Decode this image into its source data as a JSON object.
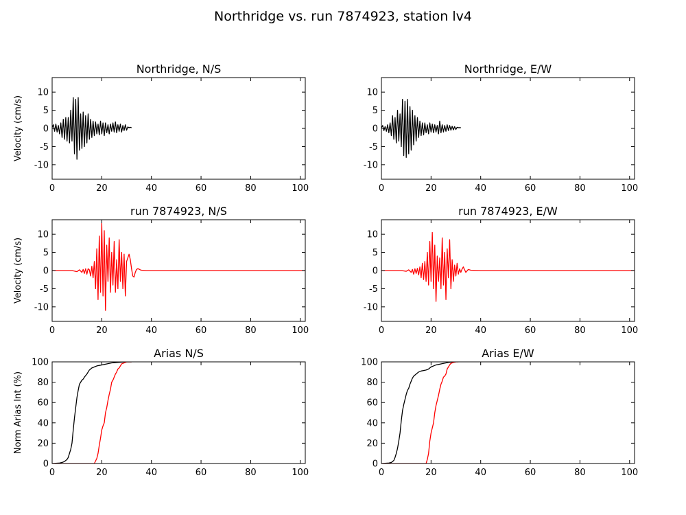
{
  "figure": {
    "suptitle": "Northridge vs. run 7874923, station lv4"
  },
  "colors": {
    "recorded": "#000000",
    "simulated": "#ff0000",
    "axes": "#000000",
    "background": "#ffffff"
  },
  "chart_data": [
    {
      "id": "p1",
      "type": "line",
      "title": "Northridge, N/S",
      "xlabel": "",
      "ylabel": "Velocity (cm/s)",
      "xlim": [
        0,
        102
      ],
      "ylim": [
        -14,
        14
      ],
      "xticks": [
        0,
        20,
        40,
        60,
        80,
        100
      ],
      "yticks": [
        10,
        5,
        0,
        -5,
        -10
      ],
      "grid": false,
      "series": [
        {
          "color": "#000000",
          "x": [
            0,
            0.5,
            1,
            1.5,
            2,
            2.5,
            3,
            3.5,
            4,
            4.5,
            5,
            5.5,
            6,
            6.5,
            7,
            7.5,
            8,
            8.5,
            9,
            9.5,
            10,
            10.5,
            11,
            11.5,
            12,
            12.5,
            13,
            13.5,
            14,
            14.5,
            15,
            15.5,
            16,
            16.5,
            17,
            17.5,
            18,
            18.5,
            19,
            19.5,
            20,
            20.5,
            21,
            21.5,
            22,
            22.5,
            23,
            23.5,
            24,
            24.5,
            25,
            25.5,
            26,
            26.5,
            27,
            27.5,
            28,
            28.5,
            29,
            29.5,
            30,
            30.5,
            31,
            31.5,
            32
          ],
          "y": [
            0.3,
            1,
            -0.8,
            1.2,
            -1,
            0.8,
            -1.5,
            1.5,
            -2.5,
            2.5,
            -3,
            3,
            -3.5,
            3,
            -4,
            5,
            -3.5,
            8.5,
            -7,
            8,
            -8.5,
            8.5,
            -6,
            4,
            -5.5,
            4.5,
            -5,
            3.5,
            -4,
            4,
            -3,
            2.5,
            -2.5,
            2,
            -2,
            1.8,
            -1.5,
            1.2,
            -1.8,
            2,
            -1.5,
            1.5,
            -2,
            1.5,
            -1.2,
            1,
            -1.5,
            1.2,
            -0.8,
            1.5,
            -1,
            1.8,
            -1.2,
            1,
            -0.8,
            1.2,
            -1,
            0.8,
            -0.6,
            1,
            -0.5,
            0.4,
            0.2,
            0.3,
            0.2
          ]
        }
      ]
    },
    {
      "id": "p2",
      "type": "line",
      "title": "Northridge, E/W",
      "xlabel": "",
      "ylabel": "",
      "xlim": [
        0,
        102
      ],
      "ylim": [
        -14,
        14
      ],
      "xticks": [
        0,
        20,
        40,
        60,
        80,
        100
      ],
      "yticks": [
        10,
        5,
        0,
        -5,
        -10
      ],
      "grid": false,
      "series": [
        {
          "color": "#000000",
          "x": [
            0,
            0.5,
            1,
            1.5,
            2,
            2.5,
            3,
            3.5,
            4,
            4.5,
            5,
            5.5,
            6,
            6.5,
            7,
            7.5,
            8,
            8.5,
            9,
            9.5,
            10,
            10.5,
            11,
            11.5,
            12,
            12.5,
            13,
            13.5,
            14,
            14.5,
            15,
            15.5,
            16,
            16.5,
            17,
            17.5,
            18,
            18.5,
            19,
            19.5,
            20,
            20.5,
            21,
            21.5,
            22,
            22.5,
            23,
            23.5,
            24,
            24.5,
            25,
            25.5,
            26,
            26.5,
            27,
            27.5,
            28,
            28.5,
            29,
            29.5,
            30,
            30.5,
            31,
            31.5,
            32
          ],
          "y": [
            0.2,
            0.8,
            -0.6,
            0.5,
            -0.8,
            1,
            -1.2,
            1.5,
            -2,
            3.5,
            -3,
            3,
            -4,
            5,
            -3.5,
            4,
            -5,
            8,
            -7.5,
            7.5,
            -8,
            8,
            -7,
            6,
            -6,
            5,
            -4.5,
            3.5,
            -3.5,
            3,
            -2.5,
            2,
            -2,
            1.5,
            -1.8,
            1.5,
            -1.2,
            1,
            -1.5,
            1.5,
            -1,
            1.2,
            -1.2,
            1,
            -1,
            0.8,
            -1.5,
            2,
            -1.2,
            1,
            -1,
            0.8,
            -0.8,
            1,
            -0.6,
            0.8,
            -0.5,
            0.6,
            -0.4,
            0.5,
            -0.3,
            0.3,
            0.2,
            0.2,
            0.2
          ]
        }
      ]
    },
    {
      "id": "p3",
      "type": "line",
      "title": "run 7874923, N/S",
      "xlabel": "",
      "ylabel": "Velocity (cm/s)",
      "xlim": [
        0,
        102
      ],
      "ylim": [
        -14,
        14
      ],
      "xticks": [
        0,
        20,
        40,
        60,
        80,
        100
      ],
      "yticks": [
        10,
        5,
        0,
        -5,
        -10
      ],
      "grid": false,
      "series": [
        {
          "color": "#ff0000",
          "x": [
            0,
            8,
            10,
            11,
            12,
            12.5,
            13,
            13.5,
            14,
            14.5,
            15,
            15.5,
            16,
            16.5,
            17,
            17.5,
            18,
            18.5,
            19,
            19.5,
            20,
            20.5,
            21,
            21.5,
            22,
            22.5,
            23,
            23.5,
            24,
            24.5,
            25,
            25.5,
            26,
            26.5,
            27,
            27.5,
            28,
            28.5,
            29,
            29.5,
            30,
            30.5,
            31,
            31.5,
            32,
            32.5,
            33,
            33.5,
            34,
            34.5,
            35,
            35.5,
            36,
            37,
            38,
            40,
            102
          ],
          "y": [
            0,
            0,
            -0.3,
            0.2,
            -0.5,
            0.3,
            -0.8,
            0.5,
            -1,
            0.5,
            0.2,
            -1.5,
            1.2,
            -2,
            2.5,
            -5,
            6,
            -8,
            9.5,
            -6,
            13,
            -7,
            11,
            -11,
            7,
            -3,
            9,
            -6,
            5,
            -4,
            8,
            -6,
            3,
            -5,
            8.5,
            -3,
            5,
            -5,
            4.5,
            -7,
            2.5,
            3.5,
            4.5,
            3,
            0.5,
            -1.5,
            -1.8,
            -0.5,
            0.3,
            0.5,
            0.4,
            0.2,
            0.1,
            0.05,
            0,
            0,
            0
          ]
        }
      ]
    },
    {
      "id": "p4",
      "type": "line",
      "title": "run 7874923, E/W",
      "xlabel": "",
      "ylabel": "",
      "xlim": [
        0,
        102
      ],
      "ylim": [
        -14,
        14
      ],
      "xticks": [
        0,
        20,
        40,
        60,
        80,
        100
      ],
      "yticks": [
        10,
        5,
        0,
        -5,
        -10
      ],
      "grid": false,
      "series": [
        {
          "color": "#ff0000",
          "x": [
            0,
            8,
            10,
            11,
            12,
            12.5,
            13,
            13.5,
            14,
            14.5,
            15,
            15.5,
            16,
            16.5,
            17,
            17.5,
            18,
            18.5,
            19,
            19.5,
            20,
            20.5,
            21,
            21.5,
            22,
            22.5,
            23,
            23.5,
            24,
            24.5,
            25,
            25.5,
            26,
            26.5,
            27,
            27.5,
            28,
            28.5,
            29,
            29.5,
            30,
            30.5,
            31,
            31.5,
            32,
            32.5,
            33,
            34,
            35,
            36,
            38,
            40,
            102
          ],
          "y": [
            0,
            0,
            -0.2,
            0.2,
            -0.5,
            0.3,
            -1,
            0.5,
            -0.8,
            0.6,
            -1.2,
            1,
            -2,
            2,
            -2.5,
            2.5,
            -3,
            5,
            -4,
            8,
            -3,
            10.5,
            -5,
            7,
            -8.5,
            4,
            -3,
            3.5,
            -5,
            9,
            -4,
            5,
            -8,
            6,
            -2,
            8.5,
            -5,
            3,
            -3,
            1.5,
            -1.5,
            2,
            -1,
            0.5,
            -0.5,
            0.4,
            1,
            -0.5,
            0.3,
            0.1,
            0.05,
            0,
            0
          ]
        }
      ]
    },
    {
      "id": "p5",
      "type": "line",
      "title": "Arias N/S",
      "xlabel": "",
      "ylabel": "Norm Arias Int (%)",
      "xlim": [
        0,
        102
      ],
      "ylim": [
        0,
        100
      ],
      "xticks": [
        0,
        20,
        40,
        60,
        80,
        100
      ],
      "yticks": [
        100,
        80,
        60,
        40,
        20,
        0
      ],
      "grid": false,
      "series": [
        {
          "color": "#000000",
          "x": [
            0,
            3,
            4,
            5,
            6,
            6.5,
            7,
            7.5,
            8,
            8.5,
            9,
            9.5,
            10,
            10.5,
            11,
            11.5,
            12,
            12.5,
            13,
            14,
            15,
            16,
            17,
            18,
            19,
            20,
            21,
            22,
            23,
            24,
            25,
            26,
            27,
            28,
            29,
            30,
            31,
            32
          ],
          "y": [
            0,
            0.5,
            1,
            2,
            4,
            6,
            10,
            14,
            20,
            33,
            45,
            55,
            65,
            72,
            78,
            80,
            82,
            83,
            85,
            88,
            92,
            94,
            95,
            96,
            96.5,
            97,
            97.5,
            98,
            98.5,
            99,
            99.2,
            99.4,
            99.6,
            99.8,
            99.9,
            100,
            100,
            100
          ]
        },
        {
          "color": "#ff0000",
          "x": [
            0,
            17,
            18,
            18.5,
            19,
            19.5,
            20,
            20.5,
            21,
            21.5,
            22,
            22.5,
            23,
            23.5,
            24,
            24.5,
            25,
            25.5,
            26,
            26.5,
            27,
            27.5,
            28,
            29,
            30,
            31,
            32
          ],
          "y": [
            0,
            0,
            5,
            10,
            18,
            25,
            33,
            37,
            40,
            50,
            55,
            62,
            68,
            73,
            80,
            82,
            85,
            88,
            90,
            93,
            94,
            96,
            98,
            99,
            100,
            100,
            100
          ]
        }
      ]
    },
    {
      "id": "p6",
      "type": "line",
      "title": "Arias E/W",
      "xlabel": "",
      "ylabel": "",
      "xlim": [
        0,
        102
      ],
      "ylim": [
        0,
        100
      ],
      "xticks": [
        0,
        20,
        40,
        60,
        80,
        100
      ],
      "yticks": [
        100,
        80,
        60,
        40,
        20,
        0
      ],
      "grid": false,
      "series": [
        {
          "color": "#000000",
          "x": [
            0,
            3,
            4,
            5,
            5.5,
            6,
            6.5,
            7,
            7.5,
            8,
            8.5,
            9,
            9.5,
            10,
            10.5,
            11,
            11.5,
            12,
            12.5,
            13,
            14,
            15,
            16,
            17,
            18,
            19,
            20,
            21,
            22,
            23,
            24,
            25,
            26,
            27,
            28,
            29,
            30
          ],
          "y": [
            0,
            0.5,
            1,
            3,
            6,
            10,
            15,
            22,
            30,
            42,
            52,
            58,
            63,
            68,
            72,
            74,
            78,
            81,
            84,
            86,
            88,
            90,
            91,
            91.5,
            92,
            93,
            95,
            96,
            97,
            97.5,
            98,
            98.5,
            99,
            99.5,
            99.8,
            100,
            100
          ]
        },
        {
          "color": "#ff0000",
          "x": [
            0,
            18,
            18.5,
            19,
            19.5,
            20,
            20.5,
            21,
            21.5,
            22,
            22.5,
            23,
            23.5,
            24,
            24.5,
            25,
            25.5,
            26,
            26.5,
            27,
            27.5,
            28,
            29,
            30,
            31
          ],
          "y": [
            0,
            0,
            4,
            10,
            22,
            30,
            35,
            40,
            50,
            57,
            62,
            67,
            73,
            78,
            81,
            85,
            86,
            88,
            93,
            95,
            97,
            98.5,
            99.5,
            100,
            100
          ]
        }
      ]
    }
  ]
}
